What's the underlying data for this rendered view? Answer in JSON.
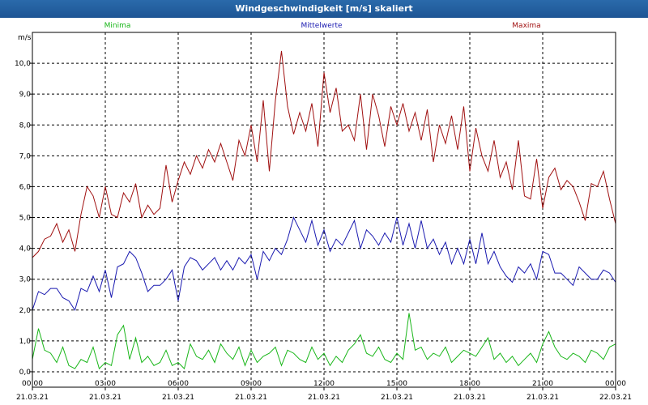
{
  "window": {
    "title": "Windgeschwindigkeit [m/s] skaliert"
  },
  "chart_data": {
    "type": "line",
    "ylabel": "m/s",
    "ylim": [
      -0.5,
      11.0
    ],
    "y_ticks": [
      "0,0",
      "1,0",
      "2,0",
      "3,0",
      "4,0",
      "5,0",
      "6,0",
      "7,0",
      "8,0",
      "9,0",
      "10,0"
    ],
    "x_ticks": [
      {
        "time": "00:00",
        "date": "21.03.21"
      },
      {
        "time": "03:00",
        "date": "21.03.21"
      },
      {
        "time": "06:00",
        "date": "21.03.21"
      },
      {
        "time": "09:00",
        "date": "21.03.21"
      },
      {
        "time": "12:00",
        "date": "21.03.21"
      },
      {
        "time": "15:00",
        "date": "21.03.21"
      },
      {
        "time": "18:00",
        "date": "21.03.21"
      },
      {
        "time": "21:00",
        "date": "21.03.21"
      },
      {
        "time": "00:00",
        "date": "22.03.21"
      }
    ],
    "x_hours": [
      0,
      24
    ],
    "grid": true,
    "legend": "top",
    "series": [
      {
        "name": "Minima",
        "color": "#19b619",
        "x": [
          0,
          0.25,
          0.5,
          0.75,
          1.0,
          1.25,
          1.5,
          1.75,
          2.0,
          2.25,
          2.5,
          2.75,
          3.0,
          3.25,
          3.5,
          3.75,
          4.0,
          4.25,
          4.5,
          4.75,
          5.0,
          5.25,
          5.5,
          5.75,
          6.0,
          6.25,
          6.5,
          6.75,
          7.0,
          7.25,
          7.5,
          7.75,
          8.0,
          8.25,
          8.5,
          8.75,
          9.0,
          9.25,
          9.5,
          9.75,
          10.0,
          10.25,
          10.5,
          10.75,
          11.0,
          11.25,
          11.5,
          11.75,
          12.0,
          12.25,
          12.5,
          12.75,
          13.0,
          13.25,
          13.5,
          13.75,
          14.0,
          14.25,
          14.5,
          14.75,
          15.0,
          15.25,
          15.5,
          15.75,
          16.0,
          16.25,
          16.5,
          16.75,
          17.0,
          17.25,
          17.5,
          17.75,
          18.0,
          18.25,
          18.5,
          18.75,
          19.0,
          19.25,
          19.5,
          19.75,
          20.0,
          20.25,
          20.5,
          20.75,
          21.0,
          21.25,
          21.5,
          21.75,
          22.0,
          22.25,
          22.5,
          22.75,
          23.0,
          23.25,
          23.5,
          23.75,
          24.0
        ],
        "values": [
          0.4,
          1.4,
          0.7,
          0.6,
          0.3,
          0.8,
          0.2,
          0.1,
          0.4,
          0.3,
          0.8,
          0.1,
          0.3,
          0.2,
          1.2,
          1.5,
          0.4,
          1.1,
          0.3,
          0.5,
          0.2,
          0.3,
          0.7,
          0.2,
          0.3,
          0.1,
          0.9,
          0.5,
          0.4,
          0.7,
          0.3,
          0.9,
          0.6,
          0.4,
          0.8,
          0.2,
          0.7,
          0.3,
          0.5,
          0.6,
          0.8,
          0.2,
          0.7,
          0.6,
          0.4,
          0.3,
          0.8,
          0.4,
          0.6,
          0.2,
          0.5,
          0.3,
          0.7,
          0.9,
          1.2,
          0.6,
          0.5,
          0.8,
          0.4,
          0.3,
          0.6,
          0.4,
          1.9,
          0.7,
          0.8,
          0.4,
          0.6,
          0.5,
          0.8,
          0.3,
          0.5,
          0.7,
          0.6,
          0.5,
          0.8,
          1.1,
          0.4,
          0.6,
          0.3,
          0.5,
          0.2,
          0.4,
          0.6,
          0.3,
          0.9,
          1.3,
          0.8,
          0.5,
          0.4,
          0.6,
          0.5,
          0.3,
          0.7,
          0.6,
          0.4,
          0.8,
          0.9
        ]
      },
      {
        "name": "Mittelwerte",
        "color": "#1a1ab0",
        "x": [
          0,
          0.25,
          0.5,
          0.75,
          1.0,
          1.25,
          1.5,
          1.75,
          2.0,
          2.25,
          2.5,
          2.75,
          3.0,
          3.25,
          3.5,
          3.75,
          4.0,
          4.25,
          4.5,
          4.75,
          5.0,
          5.25,
          5.5,
          5.75,
          6.0,
          6.25,
          6.5,
          6.75,
          7.0,
          7.25,
          7.5,
          7.75,
          8.0,
          8.25,
          8.5,
          8.75,
          9.0,
          9.25,
          9.5,
          9.75,
          10.0,
          10.25,
          10.5,
          10.75,
          11.0,
          11.25,
          11.5,
          11.75,
          12.0,
          12.25,
          12.5,
          12.75,
          13.0,
          13.25,
          13.5,
          13.75,
          14.0,
          14.25,
          14.5,
          14.75,
          15.0,
          15.25,
          15.5,
          15.75,
          16.0,
          16.25,
          16.5,
          16.75,
          17.0,
          17.25,
          17.5,
          17.75,
          18.0,
          18.25,
          18.5,
          18.75,
          19.0,
          19.25,
          19.5,
          19.75,
          20.0,
          20.25,
          20.5,
          20.75,
          21.0,
          21.25,
          21.5,
          21.75,
          22.0,
          22.25,
          22.5,
          22.75,
          23.0,
          23.25,
          23.5,
          23.75,
          24.0
        ],
        "values": [
          2.0,
          2.6,
          2.5,
          2.7,
          2.7,
          2.4,
          2.3,
          2.0,
          2.7,
          2.6,
          3.1,
          2.6,
          3.3,
          2.4,
          3.4,
          3.5,
          3.9,
          3.7,
          3.2,
          2.6,
          2.8,
          2.8,
          3.0,
          3.3,
          2.3,
          3.4,
          3.7,
          3.6,
          3.3,
          3.5,
          3.7,
          3.3,
          3.6,
          3.3,
          3.7,
          3.5,
          3.8,
          3.0,
          3.9,
          3.6,
          4.0,
          3.8,
          4.3,
          5.0,
          4.6,
          4.2,
          4.9,
          4.1,
          4.6,
          3.9,
          4.3,
          4.1,
          4.5,
          4.9,
          4.0,
          4.6,
          4.4,
          4.1,
          4.5,
          4.2,
          5.0,
          4.1,
          4.8,
          4.0,
          4.9,
          4.0,
          4.3,
          3.8,
          4.2,
          3.5,
          4.0,
          3.5,
          4.3,
          3.5,
          4.5,
          3.5,
          3.9,
          3.4,
          3.1,
          2.9,
          3.4,
          3.2,
          3.5,
          3.0,
          3.9,
          3.8,
          3.2,
          3.2,
          3.0,
          2.8,
          3.4,
          3.2,
          3.0,
          3.0,
          3.3,
          3.2,
          2.9
        ]
      },
      {
        "name": "Maxima",
        "color": "#a01010",
        "x": [
          0,
          0.25,
          0.5,
          0.75,
          1.0,
          1.25,
          1.5,
          1.75,
          2.0,
          2.25,
          2.5,
          2.75,
          3.0,
          3.25,
          3.5,
          3.75,
          4.0,
          4.25,
          4.5,
          4.75,
          5.0,
          5.25,
          5.5,
          5.75,
          6.0,
          6.25,
          6.5,
          6.75,
          7.0,
          7.25,
          7.5,
          7.75,
          8.0,
          8.25,
          8.5,
          8.75,
          9.0,
          9.25,
          9.5,
          9.75,
          10.0,
          10.25,
          10.5,
          10.75,
          11.0,
          11.25,
          11.5,
          11.75,
          12.0,
          12.25,
          12.5,
          12.75,
          13.0,
          13.25,
          13.5,
          13.75,
          14.0,
          14.25,
          14.5,
          14.75,
          15.0,
          15.25,
          15.5,
          15.75,
          16.0,
          16.25,
          16.5,
          16.75,
          17.0,
          17.25,
          17.5,
          17.75,
          18.0,
          18.25,
          18.5,
          18.75,
          19.0,
          19.25,
          19.5,
          19.75,
          20.0,
          20.25,
          20.5,
          20.75,
          21.0,
          21.25,
          21.5,
          21.75,
          22.0,
          22.25,
          22.5,
          22.75,
          23.0,
          23.25,
          23.5,
          23.75,
          24.0
        ],
        "values": [
          3.7,
          3.9,
          4.3,
          4.4,
          4.8,
          4.2,
          4.6,
          3.9,
          5.1,
          6.0,
          5.7,
          5.0,
          6.0,
          5.1,
          5.0,
          5.8,
          5.5,
          6.1,
          5.0,
          5.4,
          5.1,
          5.3,
          6.7,
          5.5,
          6.2,
          6.8,
          6.4,
          7.0,
          6.6,
          7.2,
          6.8,
          7.4,
          6.8,
          6.2,
          7.5,
          7.0,
          8.0,
          6.8,
          8.8,
          6.5,
          8.8,
          10.4,
          8.6,
          7.7,
          8.4,
          7.8,
          8.7,
          7.3,
          9.7,
          8.4,
          9.2,
          7.8,
          8.0,
          7.5,
          9.0,
          7.2,
          9.0,
          8.3,
          7.3,
          8.6,
          8.0,
          8.7,
          7.8,
          8.4,
          7.5,
          8.5,
          6.8,
          8.0,
          7.4,
          8.3,
          7.2,
          8.6,
          6.5,
          7.9,
          7.0,
          6.5,
          7.5,
          6.3,
          6.8,
          5.9,
          7.5,
          5.7,
          5.6,
          6.9,
          5.3,
          6.3,
          6.6,
          5.9,
          6.2,
          6.0,
          5.5,
          4.9,
          6.1,
          6.0,
          6.5,
          5.6,
          4.8
        ]
      }
    ]
  }
}
